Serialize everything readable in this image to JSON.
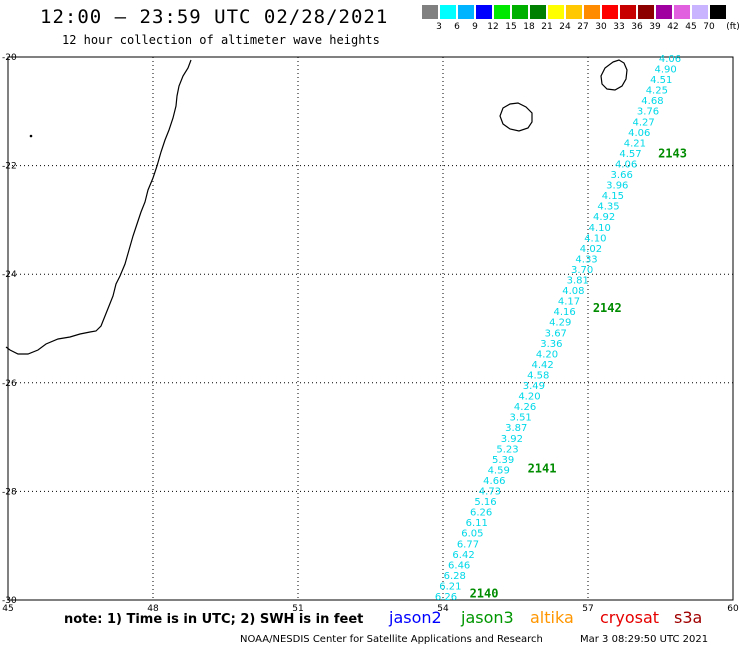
{
  "header": {
    "title": "12:00 – 23:59 UTC 02/28/2021",
    "subtitle": "12 hour collection of altimeter wave heights"
  },
  "legend": {
    "unit": "(ft)",
    "bins": [
      {
        "color": "#808080",
        "label": ""
      },
      {
        "color": "#00ffff",
        "label": "3"
      },
      {
        "color": "#00b4ff",
        "label": "6"
      },
      {
        "color": "#0000ff",
        "label": "9"
      },
      {
        "color": "#00e800",
        "label": "12"
      },
      {
        "color": "#00b000",
        "label": "15"
      },
      {
        "color": "#008000",
        "label": "18"
      },
      {
        "color": "#ffff00",
        "label": "21"
      },
      {
        "color": "#ffc800",
        "label": "24"
      },
      {
        "color": "#ff8c00",
        "label": "27"
      },
      {
        "color": "#ff0000",
        "label": "30"
      },
      {
        "color": "#c80000",
        "label": "33"
      },
      {
        "color": "#8c0000",
        "label": "36"
      },
      {
        "color": "#a000a0",
        "label": "39"
      },
      {
        "color": "#e060e0",
        "label": "42"
      },
      {
        "color": "#c8b4ff",
        "label": "45"
      },
      {
        "color": "#000000",
        "label": "70"
      }
    ]
  },
  "map": {
    "lon_range": [
      45,
      60
    ],
    "lat_range": [
      -30,
      -20
    ],
    "lon_ticks": [
      "45",
      "48",
      "51",
      "54",
      "57",
      "60"
    ],
    "lat_ticks": [
      "-20",
      "-22",
      "-24",
      "-26",
      "-28",
      "-30"
    ],
    "grid_lon": [
      48,
      51,
      54,
      57
    ],
    "grid_lat": [
      -22,
      -24,
      -26,
      -28
    ],
    "track_color": "#00d8e8",
    "track_heights": [
      "4.06",
      "4.90",
      "4.51",
      "4.25",
      "4.68",
      "3.76",
      "4.27",
      "4.06",
      "4.21",
      "4.57",
      "4.06",
      "3.66",
      "3.96",
      "4.15",
      "4.35",
      "4.92",
      "4.10",
      "4.10",
      "4.02",
      "4.33",
      "3.70",
      "3.81",
      "4.08",
      "4.17",
      "4.16",
      "4.29",
      "3.67",
      "3.36",
      "4.20",
      "4.42",
      "4.58",
      "3.49",
      "4.20",
      "4.26",
      "3.51",
      "3.87",
      "3.92",
      "5.23",
      "5.39",
      "4.59",
      "4.66",
      "4.73",
      "5.16",
      "6.26",
      "6.11",
      "6.05",
      "6.77",
      "6.42",
      "6.46",
      "6.28",
      "6.21",
      "6.26"
    ],
    "pass_labels": [
      {
        "text": "2143",
        "lon": 58.45,
        "lat": -21.85
      },
      {
        "text": "2142",
        "lon": 57.1,
        "lat": -24.7
      },
      {
        "text": "2141",
        "lon": 55.75,
        "lat": -27.65
      },
      {
        "text": "2140",
        "lon": 54.55,
        "lat": -29.95
      }
    ]
  },
  "footer": {
    "note": "note: 1) Time is in UTC; 2) SWH is in feet",
    "satellites": [
      {
        "name": "jason2",
        "color": "#0000ff"
      },
      {
        "name": "jason3",
        "color": "#009600"
      },
      {
        "name": "altika",
        "color": "#ff9600"
      },
      {
        "name": "cryosat",
        "color": "#e60000"
      },
      {
        "name": "s3a",
        "color": "#a00000"
      }
    ],
    "credit": "NOAA/NESDIS Center for Satellite Applications and Research",
    "timestamp": "Mar  3 08:29:50 UTC 2021"
  }
}
